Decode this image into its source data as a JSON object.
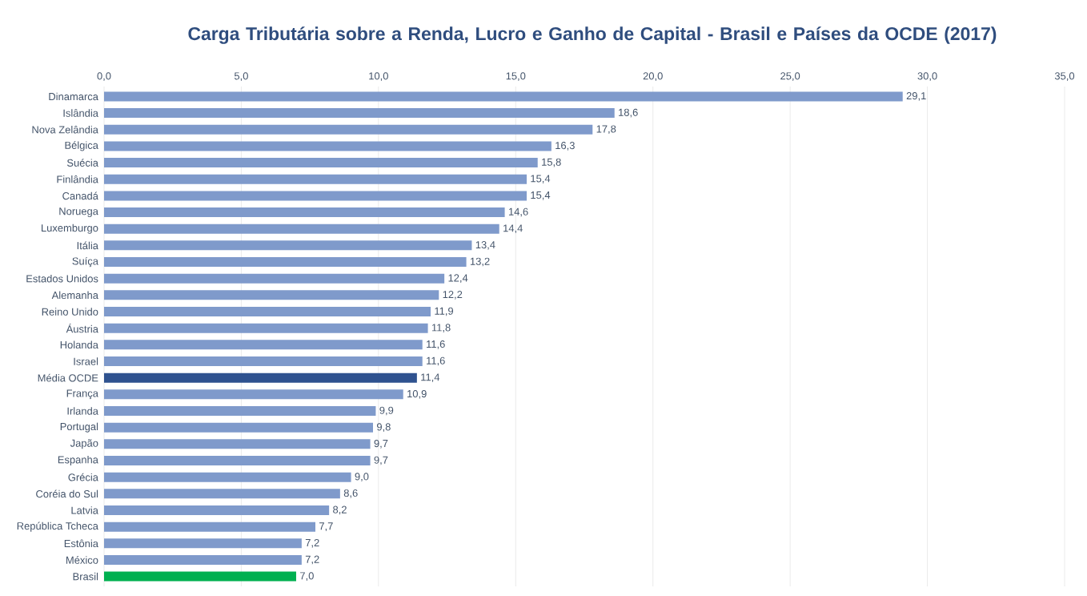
{
  "chart_data": {
    "type": "bar",
    "orientation": "horizontal",
    "title": "Carga Tributária sobre a Renda, Lucro e Ganho de Capital - Brasil e Países da OCDE (2017)",
    "categories": [
      "Dinamarca",
      "Islândia",
      "Nova Zelândia",
      "Bélgica",
      "Suécia",
      "Finlândia",
      "Canadá",
      "Noruega",
      "Luxemburgo",
      "Itália",
      "Suíça",
      "Estados Unidos",
      "Alemanha",
      "Reino Unido",
      "Áustria",
      "Holanda",
      "Israel",
      "Média OCDE",
      "França",
      "Irlanda",
      "Portugal",
      "Japão",
      "Espanha",
      "Grécia",
      "Coréia do Sul",
      "Latvia",
      "República Tcheca",
      "Estônia",
      "México",
      "Brasil"
    ],
    "values": [
      29.1,
      18.6,
      17.8,
      16.3,
      15.8,
      15.4,
      15.4,
      14.6,
      14.4,
      13.4,
      13.2,
      12.4,
      12.2,
      11.9,
      11.8,
      11.6,
      11.6,
      11.4,
      10.9,
      9.9,
      9.8,
      9.7,
      9.7,
      9.0,
      8.6,
      8.2,
      7.7,
      7.2,
      7.2,
      7.0
    ],
    "value_labels": [
      "29,1",
      "18,6",
      "17,8",
      "16,3",
      "15,8",
      "15,4",
      "15,4",
      "14,6",
      "14,4",
      "13,4",
      "13,2",
      "12,4",
      "12,2",
      "11,9",
      "11,8",
      "11,6",
      "11,6",
      "11,4",
      "10,9",
      "9,9",
      "9,8",
      "9,7",
      "9,7",
      "9,0",
      "8,6",
      "8,2",
      "7,7",
      "7,2",
      "7,2",
      "7,0"
    ],
    "colors": [
      "#7f9acb",
      "#7f9acb",
      "#7f9acb",
      "#7f9acb",
      "#7f9acb",
      "#7f9acb",
      "#7f9acb",
      "#7f9acb",
      "#7f9acb",
      "#7f9acb",
      "#7f9acb",
      "#7f9acb",
      "#7f9acb",
      "#7f9acb",
      "#7f9acb",
      "#7f9acb",
      "#7f9acb",
      "#2f528f",
      "#7f9acb",
      "#7f9acb",
      "#7f9acb",
      "#7f9acb",
      "#7f9acb",
      "#7f9acb",
      "#7f9acb",
      "#7f9acb",
      "#7f9acb",
      "#7f9acb",
      "#7f9acb",
      "#00b050"
    ],
    "xlim": [
      0,
      35
    ],
    "xticks": [
      {
        "value": 0,
        "label": "0,0"
      },
      {
        "value": 5,
        "label": "5,0"
      },
      {
        "value": 10,
        "label": "10,0"
      },
      {
        "value": 15,
        "label": "15,0"
      },
      {
        "value": 20,
        "label": "20,0"
      },
      {
        "value": 25,
        "label": "25,0"
      },
      {
        "value": 30,
        "label": "30,0"
      },
      {
        "value": 35,
        "label": "35,0"
      }
    ],
    "grid": "x"
  }
}
